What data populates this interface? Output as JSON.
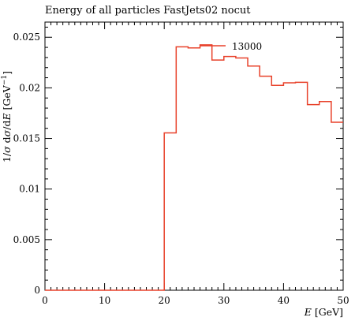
{
  "chart_data": {
    "type": "line",
    "title": "Energy of all particles FastJets02 nocut",
    "xlabel": "E [GeV]",
    "ylabel": "1/σ dσ/dE [GeV⁻¹]",
    "xlim": [
      0,
      50
    ],
    "ylim": [
      0,
      0.0265
    ],
    "x_ticks": [
      0,
      10,
      20,
      30,
      40,
      50
    ],
    "x_tick_labels": [
      "0",
      "10",
      "20",
      "30",
      "40",
      "50"
    ],
    "y_ticks": [
      0,
      0.005,
      0.01,
      0.015,
      0.02,
      0.025
    ],
    "y_tick_labels": [
      "0",
      "0.005",
      "0.01",
      "0.015",
      "0.02",
      "0.025"
    ],
    "legend_position": "top-right",
    "series": [
      {
        "name": "13000",
        "color": "#e8412a",
        "style": "step-histogram",
        "bin_edges": [
          0,
          2,
          4,
          6,
          8,
          10,
          12,
          14,
          16,
          18,
          20,
          22,
          24,
          26,
          28,
          30,
          32,
          34,
          36,
          38,
          40,
          42,
          44,
          46,
          48,
          50
        ],
        "values": [
          0,
          0,
          0,
          0,
          0,
          0,
          0,
          0,
          0,
          0,
          0.01555,
          0.02405,
          0.02395,
          0.02425,
          0.02275,
          0.0231,
          0.02295,
          0.02215,
          0.02115,
          0.02025,
          0.0205,
          0.02055,
          0.01835,
          0.01865,
          0.0166
        ]
      }
    ]
  }
}
